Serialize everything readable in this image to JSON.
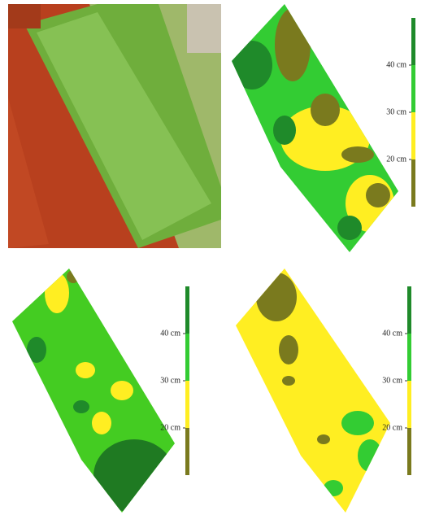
{
  "maps": [
    {
      "labels": [
        "40 cm",
        "30 cm",
        "20 cm"
      ]
    },
    {
      "labels": [
        "40 cm",
        "30 cm",
        "20 cm"
      ]
    },
    {
      "labels": [
        "40 cm",
        "30 cm",
        "20 cm"
      ]
    }
  ]
}
